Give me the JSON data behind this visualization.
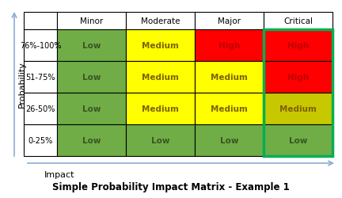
{
  "title": "Simple Probability Impact Matrix - Example 1",
  "col_headers": [
    "Minor",
    "Moderate",
    "Major",
    "Critical"
  ],
  "row_headers": [
    "76%-100%",
    "51-75%",
    "26-50%",
    "0-25%"
  ],
  "xlabel": "Impact",
  "ylabel": "Probability",
  "cells": [
    [
      {
        "text": "Low",
        "color": "#70AD47",
        "text_color": "#375623"
      },
      {
        "text": "Medium",
        "color": "#FFFF00",
        "text_color": "#7F6000"
      },
      {
        "text": "High",
        "color": "#FF0000",
        "text_color": "#C00000"
      },
      {
        "text": "High",
        "color": "#FF0000",
        "text_color": "#C00000"
      }
    ],
    [
      {
        "text": "Low",
        "color": "#70AD47",
        "text_color": "#375623"
      },
      {
        "text": "Medium",
        "color": "#FFFF00",
        "text_color": "#7F6000"
      },
      {
        "text": "Medium",
        "color": "#FFFF00",
        "text_color": "#7F6000"
      },
      {
        "text": "High",
        "color": "#FF0000",
        "text_color": "#C00000"
      }
    ],
    [
      {
        "text": "Low",
        "color": "#70AD47",
        "text_color": "#375623"
      },
      {
        "text": "Medium",
        "color": "#FFFF00",
        "text_color": "#7F6000"
      },
      {
        "text": "Medium",
        "color": "#FFFF00",
        "text_color": "#7F6000"
      },
      {
        "text": "Medium",
        "color": "#C8C800",
        "text_color": "#7F6000"
      }
    ],
    [
      {
        "text": "Low",
        "color": "#70AD47",
        "text_color": "#375623"
      },
      {
        "text": "Low",
        "color": "#70AD47",
        "text_color": "#375623"
      },
      {
        "text": "Low",
        "color": "#70AD47",
        "text_color": "#375623"
      },
      {
        "text": "Low",
        "color": "#70AD47",
        "text_color": "#375623"
      }
    ]
  ],
  "critical_border_color": "#00B050",
  "grid_line_color": "#000000",
  "header_bg": "#FFFFFF",
  "arrow_color": "#8BADD4",
  "title_fontsize": 8.5,
  "cell_fontsize": 7.5,
  "header_fontsize": 7.5,
  "row_label_fontsize": 7
}
